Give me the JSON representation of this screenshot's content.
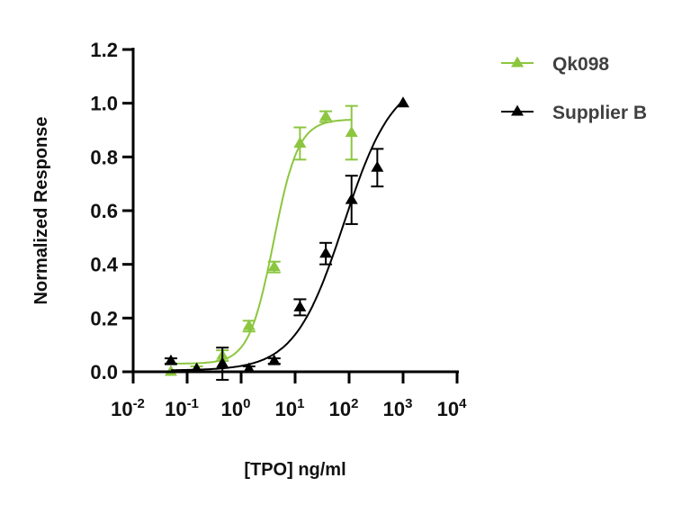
{
  "chart_data": {
    "type": "scatter",
    "xlabel": "[TPO] ng/ml",
    "ylabel": "Normalized Response",
    "xscale": "log",
    "xlim": [
      0.01,
      10000
    ],
    "ylim": [
      0,
      1.2
    ],
    "y_ticks": [
      "0.0",
      "0.2",
      "0.4",
      "0.6",
      "0.8",
      "1.0",
      "1.2"
    ],
    "x_ticks": [
      {
        "base": "10",
        "exp": "-2"
      },
      {
        "base": "10",
        "exp": "-1"
      },
      {
        "base": "10",
        "exp": "0"
      },
      {
        "base": "10",
        "exp": "1"
      },
      {
        "base": "10",
        "exp": "2"
      },
      {
        "base": "10",
        "exp": "3"
      },
      {
        "base": "10",
        "exp": "4"
      }
    ],
    "legend_position": "top-right",
    "series": [
      {
        "name": "Qk098",
        "color": "#8cc63f",
        "x": [
          0.05,
          0.15,
          0.45,
          1.4,
          4.1,
          12.3,
          37,
          111
        ],
        "y": [
          0.0,
          0.01,
          0.06,
          0.17,
          0.39,
          0.85,
          0.95,
          0.89
        ],
        "err": [
          0.0,
          0.01,
          0.02,
          0.02,
          0.02,
          0.06,
          0.02,
          0.1
        ],
        "fit": {
          "bottom": 0.03,
          "top": 0.94,
          "ec50": 4.0,
          "hill": 1.9
        }
      },
      {
        "name": "Supplier B",
        "color": "#000000",
        "x": [
          0.05,
          0.15,
          0.45,
          1.4,
          4.1,
          12.3,
          37,
          111,
          333,
          1000
        ],
        "y": [
          0.04,
          0.01,
          0.03,
          0.01,
          0.04,
          0.24,
          0.44,
          0.64,
          0.76,
          1.0
        ],
        "err": [
          0.01,
          0.0,
          0.06,
          0.01,
          0.01,
          0.03,
          0.04,
          0.09,
          0.07,
          0.0
        ],
        "fit": {
          "bottom": 0.005,
          "top": 1.1,
          "ec50": 80,
          "hill": 0.95
        }
      }
    ]
  }
}
